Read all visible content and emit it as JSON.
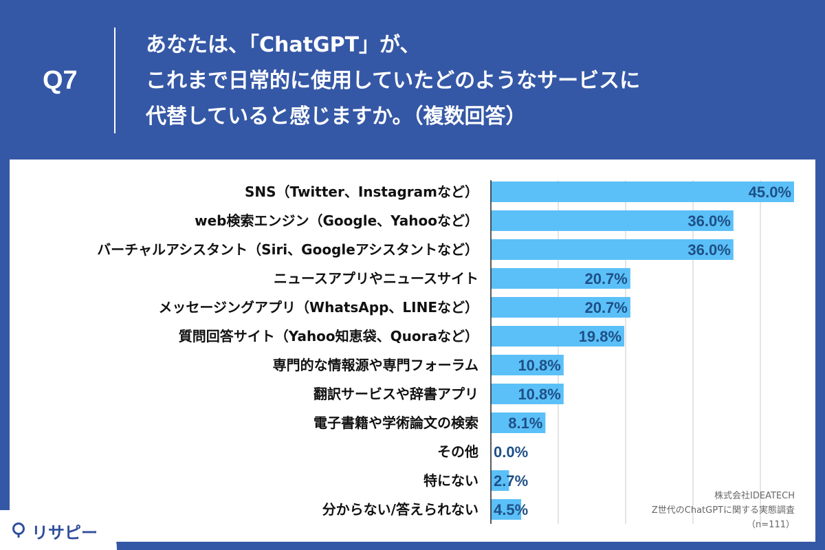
{
  "header": {
    "question_number": "Q7",
    "question_lines": [
      "あなたは、「ChatGPT」が、",
      "これまで日常的に使用していたどのようなサービスに",
      "代替していると感じますか。（複数回答）"
    ]
  },
  "footer": {
    "company": "株式会社IDEATECH",
    "survey": "Z世代のChatGPTに関する実態調査",
    "sample": "（n=111）"
  },
  "logo": {
    "text": "リサピー",
    "icon": "pin-icon"
  },
  "colors": {
    "header_bg": "#3558a6",
    "bar": "#5bc0f8",
    "value_label": "#1e4f86",
    "category_label": "#111111",
    "grid": "#c8c8c8"
  },
  "chart_data": {
    "type": "bar",
    "orientation": "horizontal",
    "categories": [
      "SNS（Twitter、Instagramなど）",
      "web検索エンジン（Google、Yahooなど）",
      "バーチャルアシスタント（Siri、Googleアシスタントなど）",
      "ニュースアプリやニュースサイト",
      "メッセージングアプリ（WhatsApp、LINEなど）",
      "質問回答サイト（Yahoo知恵袋、Quoraなど）",
      "専門的な情報源や専門フォーラム",
      "翻訳サービスや辞書アプリ",
      "電子書籍や学術論文の検索",
      "その他",
      "特にない",
      "分からない/答えられない"
    ],
    "values": [
      45.0,
      36.0,
      36.0,
      20.7,
      20.7,
      19.8,
      10.8,
      10.8,
      8.1,
      0.0,
      2.7,
      4.5
    ],
    "value_labels": [
      "45.0%",
      "36.0%",
      "36.0%",
      "20.7%",
      "20.7%",
      "19.8%",
      "10.8%",
      "10.8%",
      "8.1%",
      "0.0%",
      "2.7%",
      "4.5%"
    ],
    "xlim": [
      0,
      50
    ],
    "grid": true
  }
}
